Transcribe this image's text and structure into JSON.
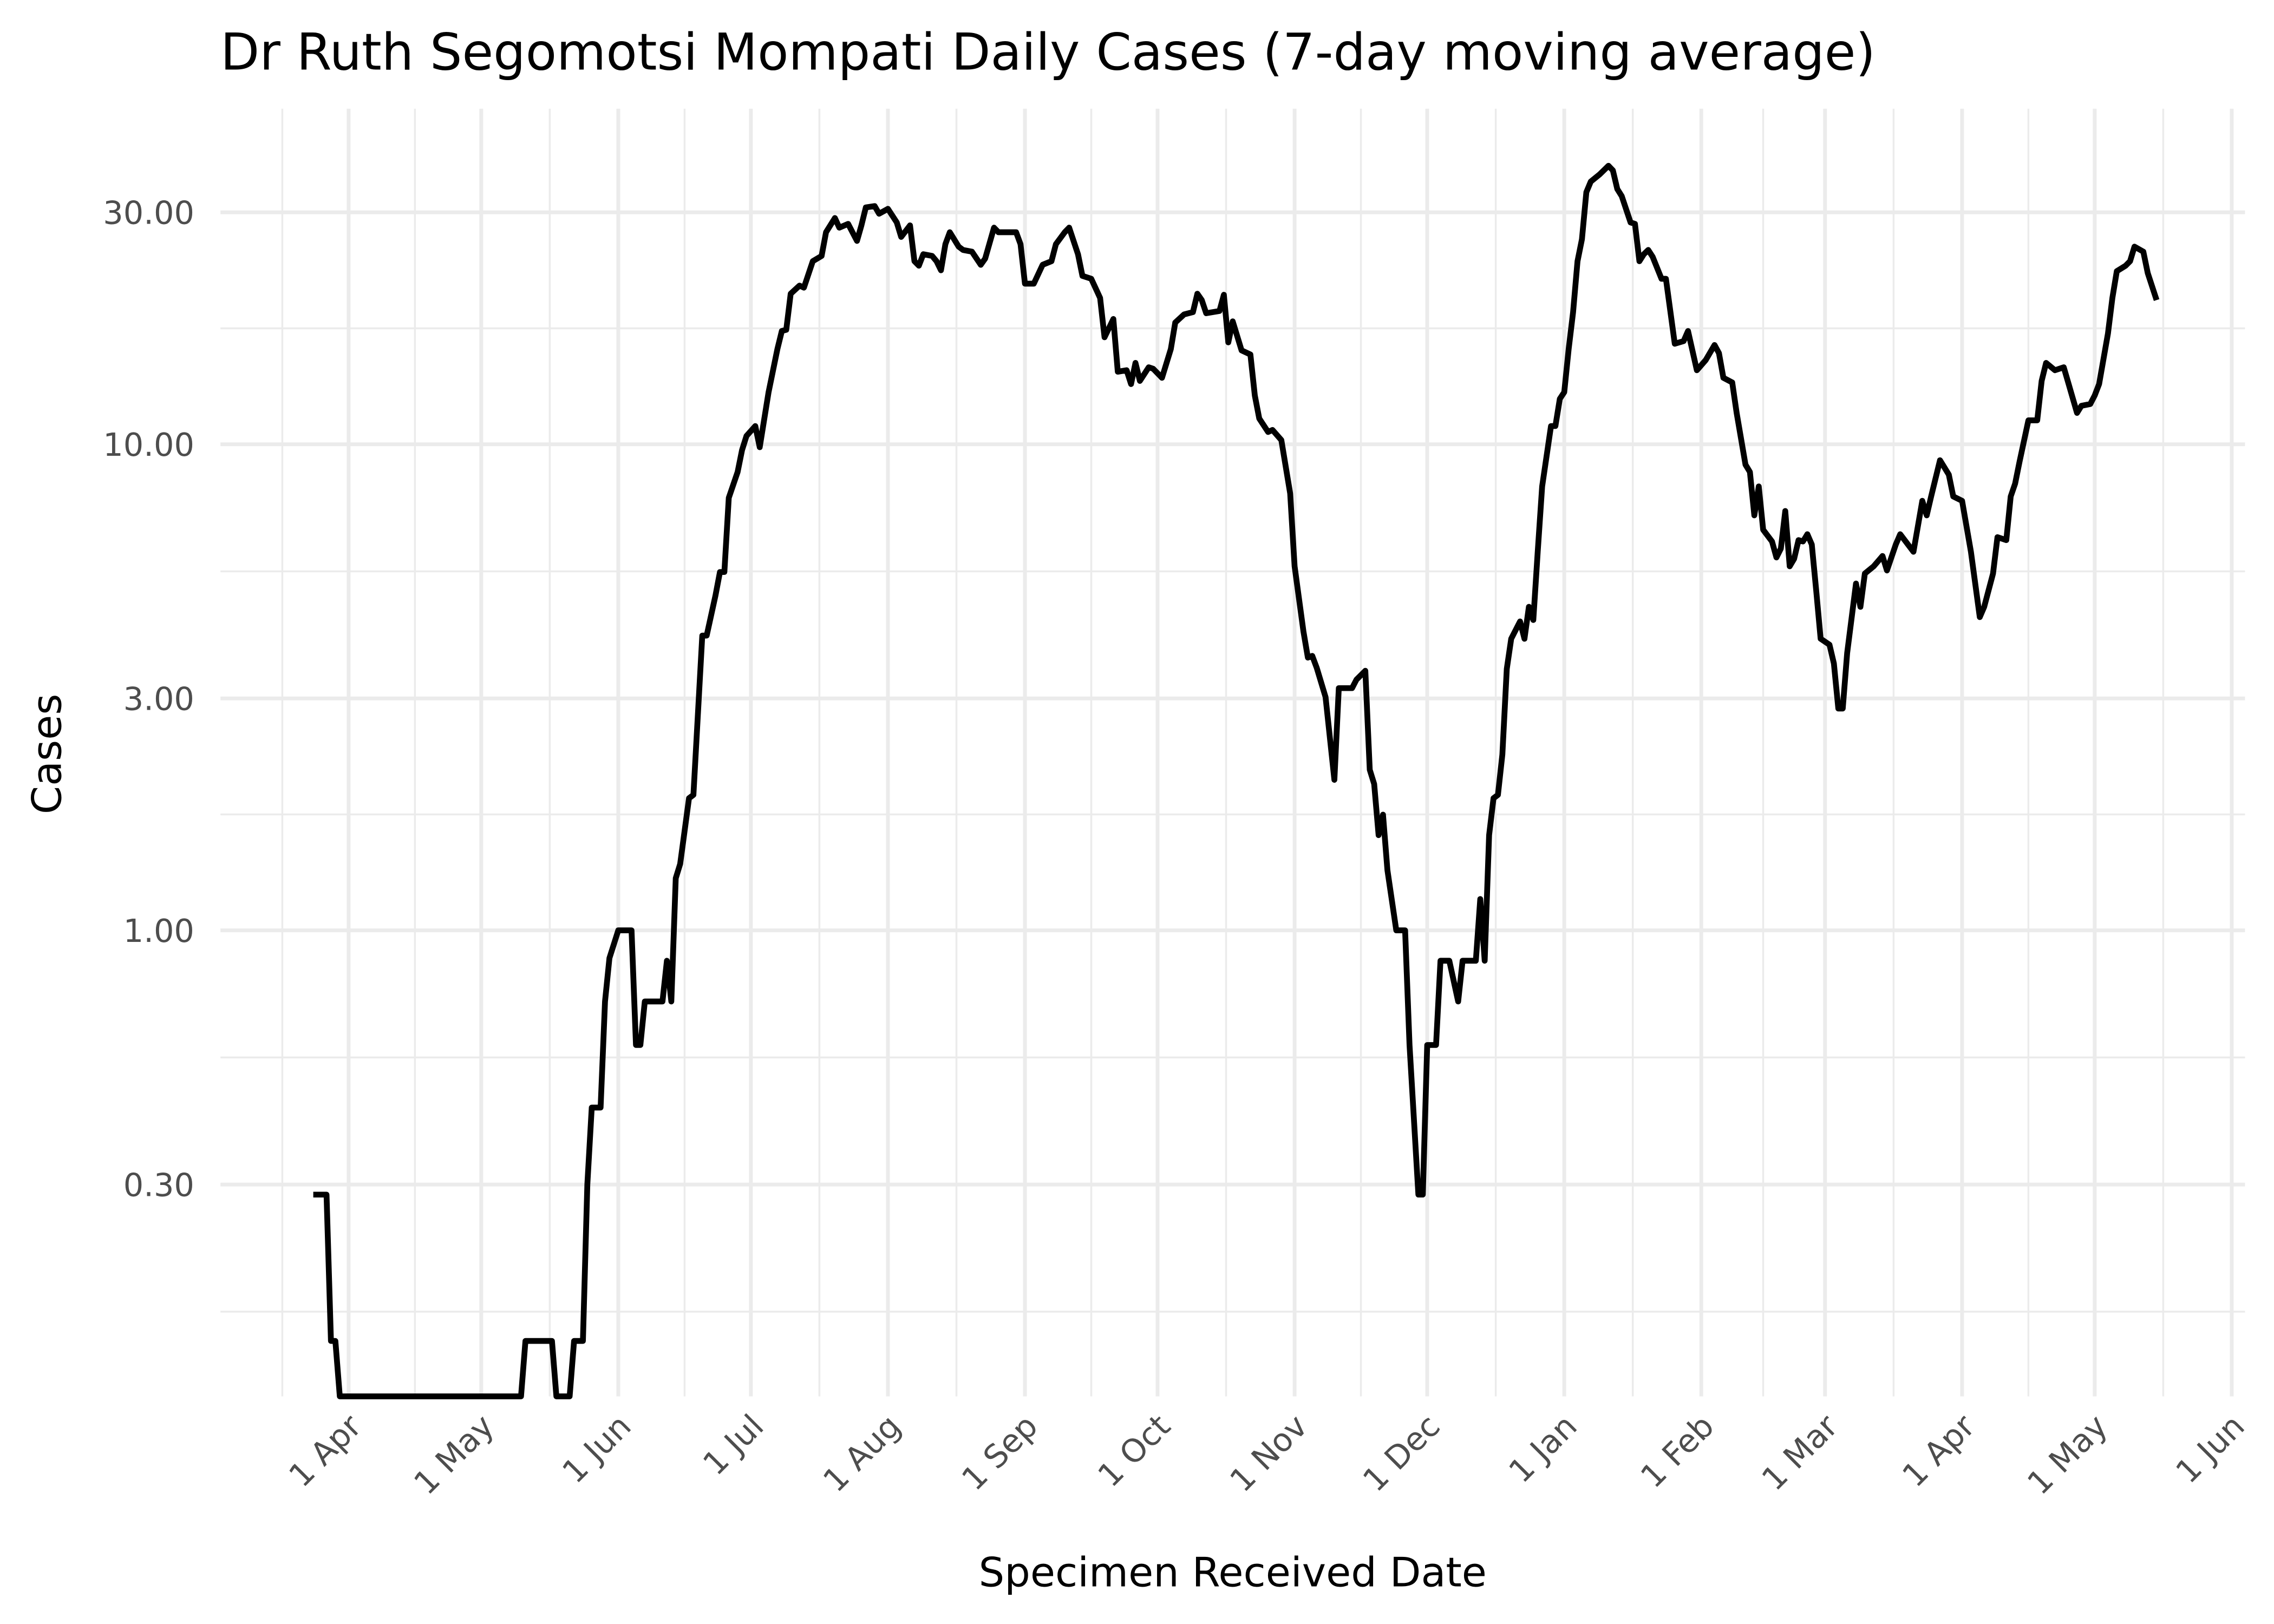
{
  "chart_data": {
    "type": "line",
    "title": "Dr Ruth Segomotsi Mompati Daily Cases (7-day moving average)",
    "x_label": "Specimen Received Date",
    "y_label": "Cases",
    "yscale": "log",
    "grid": true,
    "color": "#000000",
    "xlim": [
      -29,
      429
    ],
    "ylim": [
      0.11,
      49
    ],
    "xticks": [
      {
        "value": 0,
        "label": "1 Apr"
      },
      {
        "value": 30,
        "label": "1 May"
      },
      {
        "value": 61,
        "label": "1 Jun"
      },
      {
        "value": 91,
        "label": "1 Jul"
      },
      {
        "value": 122,
        "label": "1 Aug"
      },
      {
        "value": 153,
        "label": "1 Sep"
      },
      {
        "value": 183,
        "label": "1 Oct"
      },
      {
        "value": 214,
        "label": "1 Nov"
      },
      {
        "value": 244,
        "label": "1 Dec"
      },
      {
        "value": 275,
        "label": "1 Jan"
      },
      {
        "value": 306,
        "label": "1 Feb"
      },
      {
        "value": 334,
        "label": "1 Mar"
      },
      {
        "value": 365,
        "label": "1 Apr"
      },
      {
        "value": 395,
        "label": "1 May"
      },
      {
        "value": 426,
        "label": "1 Jun"
      }
    ],
    "yticks": [
      {
        "value": 0.3,
        "label": "0.30"
      },
      {
        "value": 1,
        "label": "1.00"
      },
      {
        "value": 3,
        "label": "3.00"
      },
      {
        "value": 10,
        "label": "10.00"
      },
      {
        "value": 30,
        "label": "30.00"
      }
    ],
    "x": [
      -8,
      -5,
      -4,
      -3,
      -2,
      39,
      40,
      46,
      47,
      50,
      51,
      53,
      54,
      55,
      57,
      58,
      59,
      61,
      64,
      65,
      66,
      67,
      71,
      72,
      73,
      74,
      75,
      77,
      78,
      80,
      81,
      83,
      84,
      85,
      86,
      88,
      89,
      90,
      92,
      93,
      95,
      97,
      98,
      99,
      100,
      102,
      103,
      105,
      107,
      108,
      110,
      111,
      113,
      115,
      116,
      117,
      119,
      120,
      122,
      124,
      125,
      127,
      128,
      129,
      130,
      132,
      133,
      134,
      135,
      136,
      138,
      139,
      141,
      143,
      144,
      146,
      147,
      149,
      151,
      152,
      153,
      155,
      157,
      159,
      160,
      162,
      163,
      165,
      166,
      168,
      170,
      171,
      173,
      174,
      176,
      177,
      178,
      179,
      181,
      182,
      184,
      186,
      187,
      189,
      191,
      192,
      193,
      194,
      197,
      198,
      199,
      200,
      202,
      204,
      205,
      206,
      208,
      209,
      211,
      213,
      214,
      216,
      217,
      218,
      219,
      221,
      223,
      224,
      227,
      228,
      230,
      231,
      232,
      233,
      234,
      235,
      237,
      239,
      240,
      242,
      243,
      244,
      246,
      247,
      249,
      251,
      252,
      255,
      256,
      257,
      258,
      259,
      260,
      261,
      262,
      263,
      265,
      266,
      267,
      268,
      269,
      270,
      272,
      273,
      274,
      275,
      276,
      277,
      278,
      279,
      280,
      281,
      283,
      285,
      286,
      287,
      288,
      290,
      291,
      292,
      293,
      294,
      295,
      297,
      298,
      300,
      302,
      303,
      305,
      307,
      309,
      310,
      311,
      313,
      314,
      316,
      317,
      318,
      319,
      320,
      322,
      323,
      324,
      325,
      326,
      327,
      328,
      329,
      330,
      331,
      332,
      333,
      335,
      336,
      337,
      338,
      339,
      341,
      342,
      343,
      345,
      347,
      348,
      350,
      351,
      354,
      356,
      357,
      358,
      360,
      362,
      363,
      365,
      367,
      369,
      370,
      372,
      373,
      375,
      376,
      377,
      378,
      380,
      382,
      383,
      384,
      386,
      388,
      389,
      391,
      392,
      394,
      395,
      396,
      398,
      399,
      400,
      402,
      403,
      404,
      406,
      407,
      409
    ],
    "values": [
      0.286,
      0.286,
      0.143,
      0.143,
      0.11,
      0.11,
      0.143,
      0.143,
      0.11,
      0.11,
      0.143,
      0.143,
      0.3,
      0.432,
      0.432,
      0.714,
      0.877,
      1.0,
      1.0,
      0.581,
      0.581,
      0.714,
      0.714,
      0.866,
      0.714,
      1.28,
      1.37,
      1.87,
      1.9,
      4.04,
      4.04,
      4.89,
      5.46,
      5.46,
      7.76,
      8.77,
      9.73,
      10.4,
      10.9,
      9.86,
      12.8,
      15.7,
      17.1,
      17.2,
      20.4,
      21.2,
      21.0,
      23.8,
      24.4,
      27.3,
      29.2,
      27.9,
      28.4,
      26.2,
      28.2,
      30.7,
      30.9,
      29.8,
      30.5,
      28.6,
      26.7,
      28.2,
      23.8,
      23.3,
      24.6,
      24.4,
      23.8,
      22.8,
      25.8,
      27.3,
      25.5,
      25.1,
      24.9,
      23.4,
      24.1,
      27.9,
      27.3,
      27.3,
      27.3,
      25.8,
      21.4,
      21.4,
      23.4,
      23.8,
      25.8,
      27.3,
      27.9,
      24.6,
      22.2,
      21.9,
      20.0,
      16.6,
      18.1,
      14.1,
      14.2,
      13.3,
      14.7,
      13.5,
      14.4,
      14.3,
      13.7,
      15.7,
      17.8,
      18.5,
      18.7,
      20.4,
      19.8,
      18.6,
      18.8,
      20.3,
      16.2,
      17.9,
      15.6,
      15.3,
      12.6,
      11.3,
      10.6,
      10.7,
      10.2,
      7.92,
      5.61,
      4.12,
      3.64,
      3.67,
      3.47,
      3.02,
      2.04,
      3.15,
      3.15,
      3.28,
      3.42,
      2.14,
      2.0,
      1.57,
      1.73,
      1.33,
      1.0,
      1.0,
      0.581,
      0.286,
      0.286,
      0.581,
      0.581,
      0.866,
      0.866,
      0.714,
      0.866,
      0.866,
      1.16,
      0.866,
      1.57,
      1.87,
      1.9,
      2.3,
      3.45,
      3.98,
      4.32,
      3.98,
      4.63,
      4.35,
      6.01,
      8.19,
      10.9,
      10.9,
      12.4,
      12.8,
      15.7,
      18.7,
      23.8,
      26.4,
      33.0,
      34.7,
      35.9,
      37.4,
      36.6,
      33.5,
      32.4,
      28.6,
      28.4,
      23.8,
      24.6,
      25.1,
      24.3,
      21.9,
      21.9,
      16.1,
      16.3,
      17.1,
      14.2,
      14.9,
      16.0,
      15.4,
      13.7,
      13.4,
      11.6,
      9.08,
      8.77,
      7.14,
      8.19,
      6.67,
      6.31,
      5.85,
      6.1,
      7.29,
      5.61,
      5.81,
      6.35,
      6.31,
      6.53,
      6.22,
      5.0,
      3.98,
      3.87,
      3.54,
      2.86,
      2.86,
      3.72,
      5.17,
      4.63,
      5.42,
      5.61,
      5.89,
      5.5,
      6.22,
      6.53,
      6.01,
      7.65,
      7.14,
      7.81,
      9.27,
      8.66,
      7.81,
      7.65,
      6.01,
      4.41,
      4.63,
      5.42,
      6.44,
      6.35,
      7.81,
      8.3,
      9.21,
      11.2,
      11.2,
      13.5,
      14.7,
      14.2,
      14.4,
      13.4,
      11.6,
      12.0,
      12.1,
      12.6,
      13.3,
      16.9,
      20.0,
      22.7,
      23.3,
      23.8,
      25.5,
      24.9,
      22.5,
      19.8
    ]
  }
}
